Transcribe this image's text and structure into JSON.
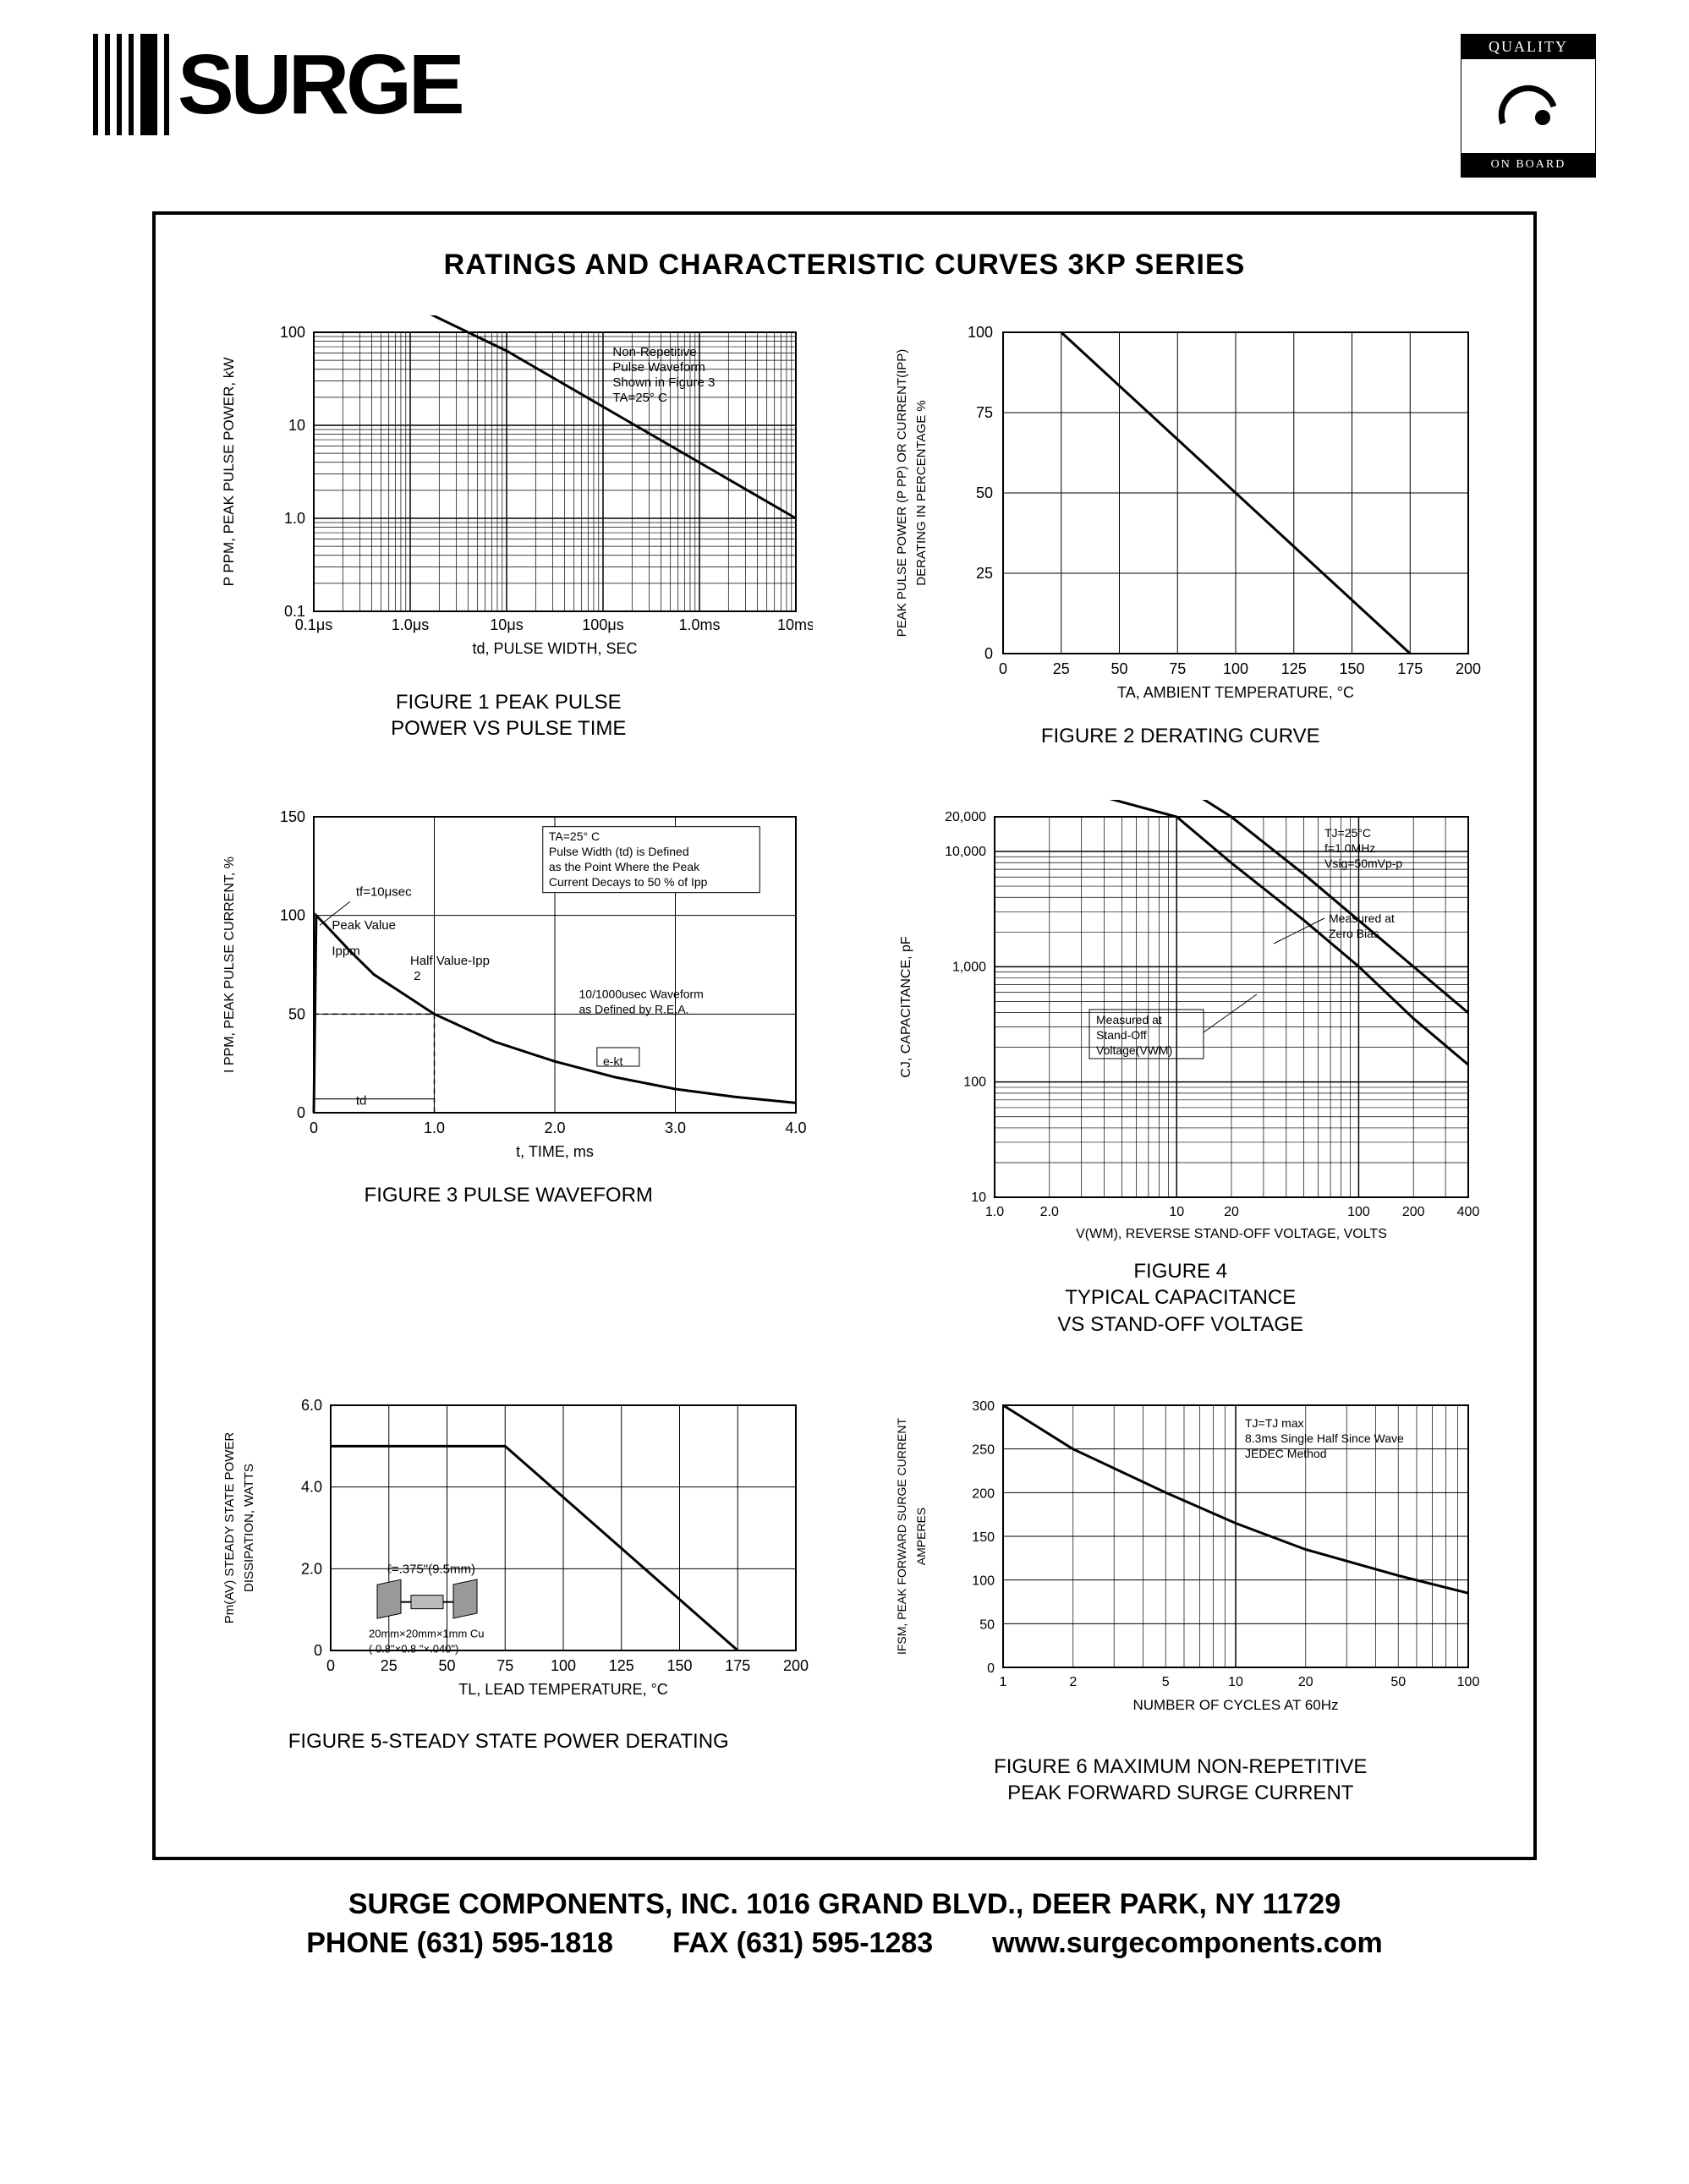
{
  "header": {
    "logo_text": "SURGE",
    "badge_top": "QUALITY",
    "badge_bot": "ON BOARD"
  },
  "main_title": "RATINGS AND CHARACTERISTIC CURVES     3KP SERIES",
  "footer": {
    "line1": "SURGE COMPONENTS, INC.    1016 GRAND BLVD., DEER PARK, NY  11729",
    "phone": "PHONE (631) 595-1818",
    "fax": "FAX  (631) 595-1283",
    "web": "www.surgecomponents.com"
  },
  "fig1": {
    "caption": "FIGURE 1 PEAK PULSE\nPOWER VS PULSE TIME",
    "ylabel": "P PPM, PEAK PULSE POWER, kW",
    "xlabel": "td, PULSE WIDTH, SEC",
    "xticks": [
      "0.1μs",
      "1.0μs",
      "10μs",
      "100μs",
      "1.0ms",
      "10ms"
    ],
    "yticks": [
      "0.1",
      "1.0",
      "10",
      "100"
    ],
    "note_lines": [
      "Non-Repetitive",
      "Pulse Waveform",
      "Shown in Figure 3",
      "TA=25° C"
    ],
    "line": [
      [
        0,
        3.7
      ],
      [
        1,
        3.3
      ],
      [
        2,
        2.8
      ],
      [
        3,
        2.2
      ],
      [
        4,
        1.6
      ],
      [
        5,
        1.0
      ]
    ],
    "colors": {
      "grid": "#000000",
      "bg": "#ffffff",
      "line": "#000000"
    }
  },
  "fig2": {
    "caption": "FIGURE 2 DERATING CURVE",
    "ylabel": "PEAK PULSE POWER (P PP) OR CURRENT(IPP)\nDERATING IN PERCENTAGE %",
    "xlabel": "TA, AMBIENT  TEMPERATURE, °C",
    "xticks": [
      "0",
      "25",
      "50",
      "75",
      "100",
      "125",
      "150",
      "175",
      "200"
    ],
    "yticks": [
      "0",
      "25",
      "50",
      "75",
      "100"
    ],
    "line": [
      [
        25,
        100
      ],
      [
        175,
        0
      ]
    ],
    "colors": {
      "grid": "#000000",
      "bg": "#ffffff",
      "line": "#000000"
    }
  },
  "fig3": {
    "caption": "FIGURE 3 PULSE WAVEFORM",
    "ylabel": "I PPM, PEAK PULSE CURRENT, %",
    "xlabel": "t, TIME, ms",
    "xticks": [
      "0",
      "1.0",
      "2.0",
      "3.0",
      "4.0"
    ],
    "yticks": [
      "0",
      "50",
      "100",
      "150"
    ],
    "note_box": [
      "TA=25° C",
      "Pulse Width (td) is Defined",
      "as the Point Where the Peak",
      "Current Decays to 50 % of Ipp"
    ],
    "labels": {
      "tf": "tf=10μsec",
      "peak": "Peak Value",
      "ippm": "Ippm",
      "half": "Half Value-Ipp\n             2",
      "td": "td",
      "wave": "10/1000usec Waveform\nas Defined by R.E.A.",
      "ekt": "e-kt"
    },
    "curve": [
      [
        0,
        0
      ],
      [
        0.02,
        100
      ],
      [
        0.1,
        95
      ],
      [
        0.3,
        82
      ],
      [
        0.5,
        70
      ],
      [
        1.0,
        50
      ],
      [
        1.5,
        36
      ],
      [
        2.0,
        26
      ],
      [
        2.5,
        18
      ],
      [
        3.0,
        12
      ],
      [
        3.5,
        8
      ],
      [
        4.0,
        5
      ]
    ],
    "colors": {
      "grid": "#000000",
      "bg": "#ffffff",
      "line": "#000000"
    }
  },
  "fig4": {
    "caption": "FIGURE 4\nTYPICAL CAPACITANCE\nVS STAND-OFF VOLTAGE",
    "ylabel": "CJ, CAPACITANCE, pF",
    "xlabel": "V(WM), REVERSE STAND-OFF VOLTAGE, VOLTS",
    "xticks": [
      "1.0",
      "2.0",
      "10",
      "20",
      "100",
      "200",
      "400"
    ],
    "yticks": [
      "10",
      "100",
      "1,000",
      "10,000",
      "20,000"
    ],
    "note_lines": [
      "TJ=25°C",
      "f=1.0MHz",
      "Vsig=50mVp-p"
    ],
    "labels": {
      "zero": "Measured at\nZero Bias",
      "standoff": "Measured at\nStand-Off\nVoltage(VWM)"
    },
    "curve_zero": [
      [
        0,
        3.95
      ],
      [
        0.3,
        3.9
      ],
      [
        1.0,
        3.6
      ],
      [
        1.3,
        3.3
      ],
      [
        1.7,
        2.8
      ],
      [
        2.0,
        2.4
      ],
      [
        2.3,
        2.0
      ],
      [
        2.6,
        1.6
      ]
    ],
    "curve_standoff": [
      [
        0,
        3.7
      ],
      [
        0.3,
        3.6
      ],
      [
        1.0,
        3.3
      ],
      [
        1.3,
        2.9
      ],
      [
        1.7,
        2.4
      ],
      [
        2.0,
        2.0
      ],
      [
        2.3,
        1.55
      ],
      [
        2.6,
        1.15
      ]
    ],
    "colors": {
      "grid": "#000000",
      "bg": "#ffffff",
      "line": "#000000"
    }
  },
  "fig5": {
    "caption": "FIGURE 5-STEADY STATE POWER DERATING",
    "ylabel": "Pm(AV) STEADY STATE POWER\nDISSIPATION, WATTS",
    "xlabel": "TL, LEAD TEMPERATURE, °C",
    "xticks": [
      "0",
      "25",
      "50",
      "75",
      "100",
      "125",
      "150",
      "175",
      "200"
    ],
    "yticks": [
      "0",
      "2.0",
      "4.0",
      "6.0"
    ],
    "note_L": "ℓ=.375\"(9.5mm)",
    "note_dims": "20mm×20mm×1mm Cu\n( 0.8\"×0.8 \"×.040\")",
    "line": [
      [
        0,
        5.0
      ],
      [
        75,
        5.0
      ],
      [
        175,
        0
      ]
    ],
    "colors": {
      "grid": "#000000",
      "bg": "#ffffff",
      "line": "#000000"
    }
  },
  "fig6": {
    "caption": "FIGURE 6 MAXIMUM NON-REPETITIVE\nPEAK FORWARD SURGE CURRENT",
    "ylabel": "IFSM, PEAK FORWARD SURGE CURRENT\nAMPERES",
    "xlabel": "NUMBER OF CYCLES AT 60Hz",
    "xticks": [
      "1",
      "2",
      "5",
      "10",
      "20",
      "50",
      "100"
    ],
    "yticks": [
      "0",
      "50",
      "100",
      "150",
      "200",
      "250",
      "300"
    ],
    "note_lines": [
      "TJ=TJ max",
      "8.3ms Single Half Since Wave",
      "JEDEC Method"
    ],
    "curve": [
      [
        0,
        300
      ],
      [
        0.3,
        250
      ],
      [
        0.7,
        200
      ],
      [
        1.0,
        165
      ],
      [
        1.3,
        135
      ],
      [
        1.7,
        105
      ],
      [
        2.0,
        85
      ]
    ],
    "colors": {
      "grid": "#000000",
      "bg": "#ffffff",
      "line": "#000000"
    }
  }
}
